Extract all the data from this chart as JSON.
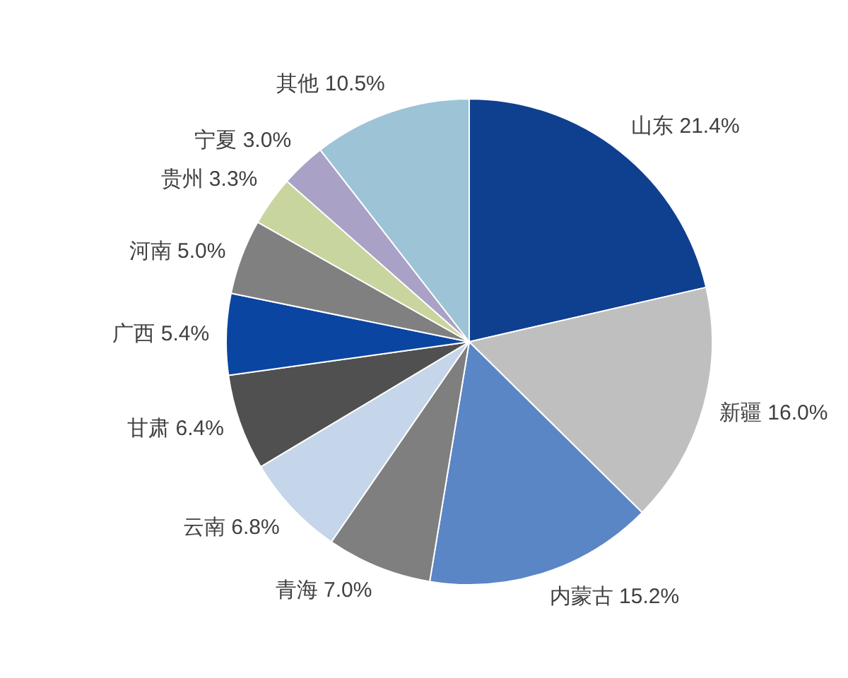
{
  "chart_data": {
    "type": "pie",
    "categories": [
      "山东",
      "新疆",
      "内蒙古",
      "青海",
      "云南",
      "甘肃",
      "广西",
      "河南",
      "贵州",
      "宁夏",
      "其他"
    ],
    "values": [
      21.4,
      16.0,
      15.2,
      7.0,
      6.8,
      6.4,
      5.4,
      5.0,
      3.3,
      3.0,
      10.5
    ],
    "value_labels": [
      "21.4%",
      "16.0%",
      "15.2%",
      "7.0%",
      "6.8%",
      "6.4%",
      "5.4%",
      "5.0%",
      "3.3%",
      "3.0%",
      "10.5%"
    ],
    "colors": [
      "#0f3f8f",
      "#bfbfbf",
      "#5a86c5",
      "#7f7f7f",
      "#c5d5ea",
      "#505050",
      "#0b45a2",
      "#808080",
      "#c9d59e",
      "#a9a1c6",
      "#9dc3d6"
    ]
  }
}
